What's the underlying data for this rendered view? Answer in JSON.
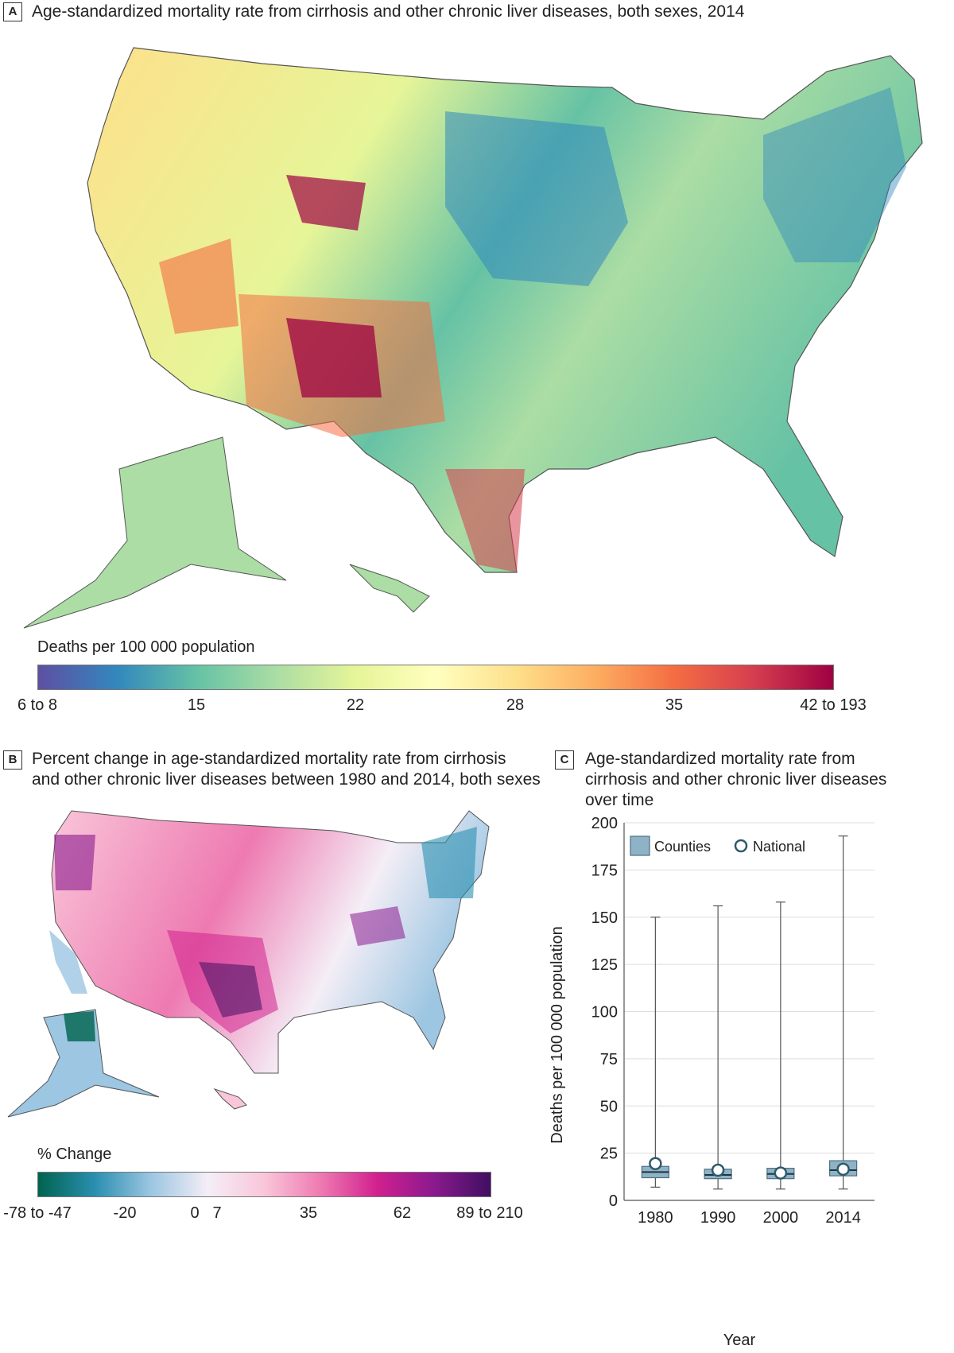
{
  "panelA": {
    "letter": "A",
    "title": "Age-standardized mortality rate from cirrhosis and other chronic liver diseases, both sexes, 2014",
    "legend_title": "Deaths per 100 000 population",
    "ticks": [
      "6 to 8",
      "15",
      "22",
      "28",
      "35",
      "42 to 193"
    ],
    "colors": [
      "#5e4fa2",
      "#3288bd",
      "#66c2a5",
      "#abdda4",
      "#e6f598",
      "#ffffbf",
      "#fee08b",
      "#fdae61",
      "#f46d43",
      "#d53e4f",
      "#9e0142"
    ]
  },
  "panelB": {
    "letter": "B",
    "title_line1": "Percent change in age-standardized mortality rate from cirrhosis",
    "title_line2": "and other chronic liver diseases between 1980 and 2014, both sexes",
    "legend_title": "% Change",
    "ticks": [
      "-78 to -47",
      "-20",
      "0",
      "7",
      "35",
      "62",
      "89 to 210"
    ],
    "colors": [
      "#00634f",
      "#2a8fb0",
      "#9cc6e2",
      "#f4eef6",
      "#f9c6d9",
      "#ee7ab1",
      "#d1208e",
      "#8a1a8e",
      "#3f0f60"
    ]
  },
  "panelC": {
    "letter": "C",
    "title_line1": "Age-standardized mortality rate from",
    "title_line2": "cirrhosis and other chronic liver diseases",
    "title_line3": "over time",
    "legend_counties": "Counties",
    "legend_national": "National",
    "colors": {
      "box": "#8fb3c6",
      "box_stroke": "#4e6f80",
      "national": "#2e5a6b"
    }
  },
  "chart_data": {
    "type": "box",
    "title": "Age-standardized mortality rate from cirrhosis and other chronic liver diseases over time",
    "xlabel": "Year",
    "ylabel": "Deaths per 100 000 population",
    "ylim": [
      0,
      200
    ],
    "yticks": [
      0,
      25,
      50,
      75,
      100,
      125,
      150,
      175,
      200
    ],
    "categories": [
      "1980",
      "1990",
      "2000",
      "2014"
    ],
    "series": [
      {
        "name": "Counties",
        "min": [
          7,
          6,
          6,
          6
        ],
        "q1": [
          12,
          11.5,
          11.5,
          13
        ],
        "median": [
          15,
          13.5,
          14,
          16
        ],
        "q3": [
          18,
          16.5,
          17,
          21
        ],
        "max": [
          150,
          156,
          158,
          193
        ]
      },
      {
        "name": "National",
        "values": [
          19.5,
          16,
          14.5,
          16.5
        ]
      }
    ]
  }
}
